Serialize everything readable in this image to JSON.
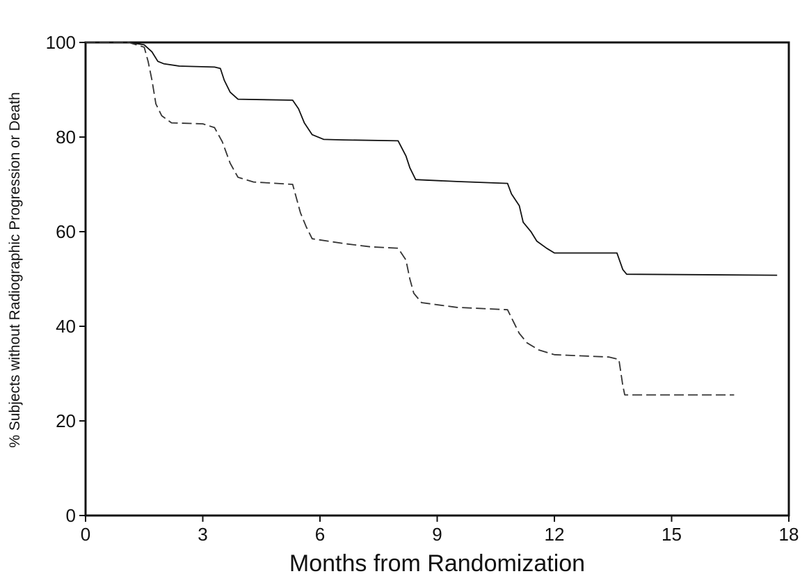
{
  "chart_data": {
    "type": "line",
    "title": "",
    "xlabel": "Months from Randomization",
    "ylabel": "% Subjects without Radiographic Progression or Death",
    "xlim": [
      0,
      18
    ],
    "ylim": [
      0,
      100
    ],
    "x_ticks": [
      "0",
      "3",
      "6",
      "9",
      "12",
      "15",
      "18"
    ],
    "y_ticks": [
      "0",
      "20",
      "40",
      "60",
      "80",
      "100"
    ],
    "grid": false,
    "legend": "none",
    "series": [
      {
        "style": "solid",
        "color": "#111111",
        "points": [
          [
            0,
            100
          ],
          [
            1.1,
            100
          ],
          [
            1.5,
            99.5
          ],
          [
            1.7,
            98
          ],
          [
            1.85,
            96
          ],
          [
            2.0,
            95.5
          ],
          [
            2.4,
            95
          ],
          [
            3.3,
            94.8
          ],
          [
            3.45,
            94.5
          ],
          [
            3.55,
            92
          ],
          [
            3.7,
            89.5
          ],
          [
            3.9,
            88
          ],
          [
            5.3,
            87.8
          ],
          [
            5.45,
            86
          ],
          [
            5.6,
            83
          ],
          [
            5.8,
            80.5
          ],
          [
            6.1,
            79.5
          ],
          [
            6.6,
            79.4
          ],
          [
            8.0,
            79.2
          ],
          [
            8.2,
            76
          ],
          [
            8.3,
            73.5
          ],
          [
            8.45,
            71
          ],
          [
            9.5,
            70.6
          ],
          [
            10.8,
            70.2
          ],
          [
            10.9,
            68
          ],
          [
            11.1,
            65.5
          ],
          [
            11.2,
            62
          ],
          [
            11.4,
            60
          ],
          [
            11.55,
            58
          ],
          [
            11.8,
            56.5
          ],
          [
            12.0,
            55.5
          ],
          [
            13.6,
            55.5
          ],
          [
            13.75,
            52
          ],
          [
            13.85,
            51
          ],
          [
            17.7,
            50.8
          ]
        ]
      },
      {
        "style": "dashed",
        "color": "#333333",
        "points": [
          [
            0,
            100
          ],
          [
            1.1,
            100
          ],
          [
            1.5,
            99
          ],
          [
            1.6,
            96
          ],
          [
            1.7,
            92
          ],
          [
            1.8,
            87
          ],
          [
            1.95,
            84.5
          ],
          [
            2.2,
            83
          ],
          [
            3.0,
            82.8
          ],
          [
            3.3,
            82
          ],
          [
            3.5,
            79
          ],
          [
            3.7,
            74.5
          ],
          [
            3.9,
            71.5
          ],
          [
            4.3,
            70.5
          ],
          [
            5.3,
            70
          ],
          [
            5.5,
            64
          ],
          [
            5.65,
            61
          ],
          [
            5.8,
            58.5
          ],
          [
            6.6,
            57.5
          ],
          [
            7.3,
            56.8
          ],
          [
            8.0,
            56.5
          ],
          [
            8.2,
            54
          ],
          [
            8.3,
            50
          ],
          [
            8.4,
            47
          ],
          [
            8.6,
            45
          ],
          [
            9.5,
            44
          ],
          [
            10.8,
            43.5
          ],
          [
            10.95,
            41
          ],
          [
            11.1,
            38.5
          ],
          [
            11.3,
            36.5
          ],
          [
            11.6,
            35
          ],
          [
            12.0,
            34
          ],
          [
            13.4,
            33.5
          ],
          [
            13.65,
            33
          ],
          [
            13.75,
            27.5
          ],
          [
            13.8,
            25.5
          ],
          [
            16.6,
            25.5
          ]
        ]
      }
    ]
  }
}
